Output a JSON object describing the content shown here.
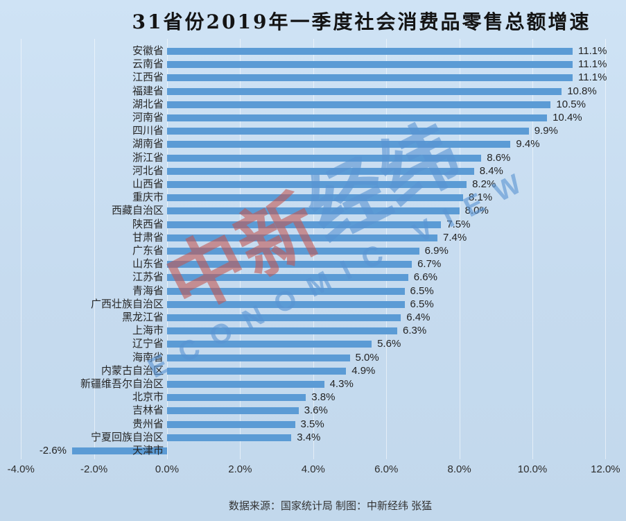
{
  "title": "31省份2019年一季度社会消费品零售总额增速",
  "footer": "数据来源：国家统计局  制图：中新经纬 张猛",
  "watermark": {
    "cn_red": "中新",
    "cn_blue": "经纬",
    "en": "ECONOMIC VIEW"
  },
  "colors": {
    "bar": "#5B9BD5",
    "background": "#C9DDF0",
    "title_text": "#141414",
    "label_text": "#262626",
    "watermark_red": "#C3544F",
    "watermark_blue": "#5893D2"
  },
  "chart_data": {
    "type": "bar",
    "orientation": "horizontal",
    "title": "31省份2019年一季度社会消费品零售总额增速",
    "xlabel": "",
    "ylabel": "",
    "xlim": [
      -4,
      12
    ],
    "grid": true,
    "legend": false,
    "x_ticks": [
      "-4.0%",
      "-2.0%",
      "0.0%",
      "2.0%",
      "4.0%",
      "6.0%",
      "8.0%",
      "10.0%",
      "12.0%"
    ],
    "x_tick_values": [
      -4,
      -2,
      0,
      2,
      4,
      6,
      8,
      10,
      12
    ],
    "categories": [
      "安徽省",
      "云南省",
      "江西省",
      "福建省",
      "湖北省",
      "河南省",
      "四川省",
      "湖南省",
      "浙江省",
      "河北省",
      "山西省",
      "重庆市",
      "西藏自治区",
      "陕西省",
      "甘肃省",
      "广东省",
      "山东省",
      "江苏省",
      "青海省",
      "广西壮族自治区",
      "黑龙江省",
      "上海市",
      "辽宁省",
      "海南省",
      "内蒙古自治区",
      "新疆维吾尔自治区",
      "北京市",
      "吉林省",
      "贵州省",
      "宁夏回族自治区",
      "天津市"
    ],
    "values": [
      11.1,
      11.1,
      11.1,
      10.8,
      10.5,
      10.4,
      9.9,
      9.4,
      8.6,
      8.4,
      8.2,
      8.1,
      8.0,
      7.5,
      7.4,
      6.9,
      6.7,
      6.6,
      6.5,
      6.5,
      6.4,
      6.3,
      5.6,
      5.0,
      4.9,
      4.3,
      3.8,
      3.6,
      3.5,
      3.4,
      -2.6
    ],
    "value_labels": [
      "11.1%",
      "11.1%",
      "11.1%",
      "10.8%",
      "10.5%",
      "10.4%",
      "9.9%",
      "9.4%",
      "8.6%",
      "8.4%",
      "8.2%",
      "8.1%",
      "8.0%",
      "7.5%",
      "7.4%",
      "6.9%",
      "6.7%",
      "6.6%",
      "6.5%",
      "6.5%",
      "6.4%",
      "6.3%",
      "5.6%",
      "5.0%",
      "4.9%",
      "4.3%",
      "3.8%",
      "3.6%",
      "3.5%",
      "3.4%",
      "-2.6%"
    ]
  }
}
